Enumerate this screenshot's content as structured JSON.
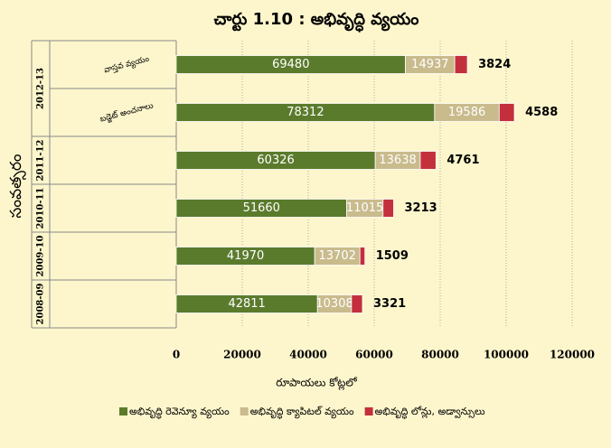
{
  "chart_data": {
    "type": "stacked_barh",
    "title": "చార్టు 1.10  :  అభివృద్ధి వ్యయం",
    "xlabel": "రూపాయలు కోట్లలో",
    "ylabel": "సంవత్సరం",
    "year_groups": [
      "2012-13",
      "2011-12",
      "2010-11",
      "2009-10",
      "2008-09"
    ],
    "categories": [
      "వాస్తవ వ్యయం",
      "బడ్జెట్ అంచనాలు",
      null,
      null,
      null,
      null
    ],
    "series": [
      {
        "name": "అభివృద్ధి రెవెన్యూ వ్యయం",
        "color": "#5b7b2c",
        "values": [
          69480,
          78312,
          60326,
          51660,
          41970,
          42811
        ]
      },
      {
        "name": "అభివృద్ధి క్యాపిటల్ వ్యయం",
        "color": "#c9bb8c",
        "values": [
          14937,
          19586,
          13638,
          11015,
          13702,
          10308
        ]
      },
      {
        "name": "అభివృద్ధి లోన్లు, అడ్వాన్సులు",
        "color": "#c3303c",
        "values": [
          3824,
          4588,
          4761,
          3213,
          1509,
          3321
        ]
      }
    ],
    "xlim": [
      0,
      120000
    ],
    "xticks": [
      0,
      20000,
      40000,
      60000,
      80000,
      100000,
      120000
    ],
    "grid": true
  }
}
